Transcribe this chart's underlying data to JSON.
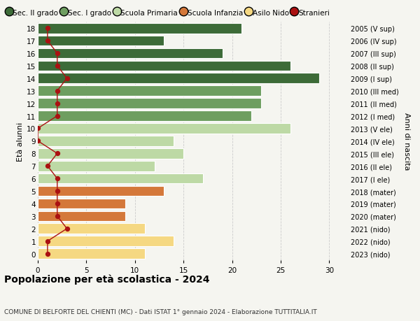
{
  "ages": [
    18,
    17,
    16,
    15,
    14,
    13,
    12,
    11,
    10,
    9,
    8,
    7,
    6,
    5,
    4,
    3,
    2,
    1,
    0
  ],
  "bar_values": [
    21,
    13,
    19,
    26,
    29,
    23,
    23,
    22,
    26,
    14,
    15,
    12,
    17,
    13,
    9,
    9,
    11,
    14,
    11
  ],
  "stranieri": [
    1,
    1,
    2,
    2,
    3,
    2,
    2,
    2,
    0,
    0,
    2,
    1,
    2,
    2,
    2,
    2,
    3,
    1,
    1
  ],
  "right_labels": [
    "2005 (V sup)",
    "2006 (IV sup)",
    "2007 (III sup)",
    "2008 (II sup)",
    "2009 (I sup)",
    "2010 (III med)",
    "2011 (II med)",
    "2012 (I med)",
    "2013 (V ele)",
    "2014 (IV ele)",
    "2015 (III ele)",
    "2016 (II ele)",
    "2017 (I ele)",
    "2018 (mater)",
    "2019 (mater)",
    "2020 (mater)",
    "2021 (nido)",
    "2022 (nido)",
    "2023 (nido)"
  ],
  "colors": {
    "sec_II": "#3d6b38",
    "sec_I": "#6e9e60",
    "primaria": "#bdd9a5",
    "infanzia": "#d4783a",
    "nido": "#f5d882"
  },
  "legend_labels": [
    "Sec. II grado",
    "Sec. I grado",
    "Scuola Primaria",
    "Scuola Infanzia",
    "Asilo Nido",
    "Stranieri"
  ],
  "title": "Popolazione per età scolastica - 2024",
  "subtitle": "COMUNE DI BELFORTE DEL CHIENTI (MC) - Dati ISTAT 1° gennaio 2024 - Elaborazione TUTTITALIA.IT",
  "ylabel_left": "Età alunni",
  "ylabel_right": "Anni di nascita",
  "xlim": [
    0,
    32
  ],
  "bg_color": "#f5f5f0",
  "grid_color": "#cccccc",
  "stranieri_color": "#aa1111"
}
